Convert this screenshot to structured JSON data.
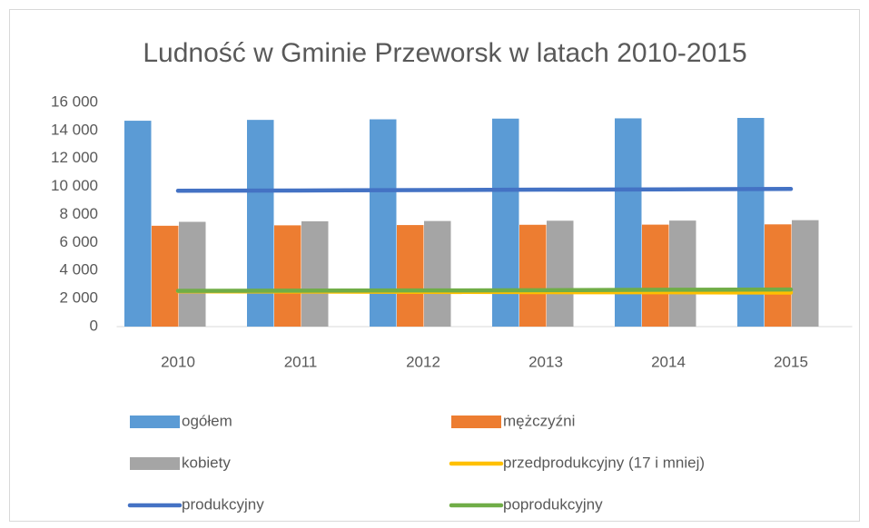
{
  "chart_data": {
    "type": "bar",
    "title": "Ludność w Gminie Przeworsk w latach 2010-2015",
    "categories": [
      "2010",
      "2011",
      "2012",
      "2013",
      "2014",
      "2015"
    ],
    "series": [
      {
        "name": "ogółem",
        "type": "bar",
        "color": "#5b9bd5",
        "values": [
          14700,
          14760,
          14800,
          14850,
          14870,
          14900
        ]
      },
      {
        "name": "mężczyźni",
        "type": "bar",
        "color": "#ed7d31",
        "values": [
          7200,
          7230,
          7250,
          7270,
          7280,
          7300
        ]
      },
      {
        "name": "kobiety",
        "type": "bar",
        "color": "#a5a5a5",
        "values": [
          7480,
          7520,
          7540,
          7560,
          7570,
          7600
        ]
      },
      {
        "name": "przedprodukcyjny (17 i mniej)",
        "type": "line",
        "color": "#ffc000",
        "values": [
          2520,
          2500,
          2480,
          2460,
          2450,
          2430
        ]
      },
      {
        "name": "produkcyjny",
        "type": "line",
        "color": "#4472c4",
        "values": [
          9700,
          9720,
          9750,
          9780,
          9800,
          9830
        ]
      },
      {
        "name": "poprodukcyjny",
        "type": "line",
        "color": "#70ad47",
        "values": [
          2550,
          2570,
          2580,
          2600,
          2630,
          2650
        ]
      }
    ],
    "ylim": [
      0,
      16000
    ],
    "yticks": [
      0,
      {
        "value": 2000,
        "label": "2 000"
      },
      {
        "value": 4000,
        "label": "4 000"
      },
      {
        "value": 6000,
        "label": "6 000"
      },
      {
        "value": 8000,
        "label": "8 000"
      },
      {
        "value": 10000,
        "label": "10 000"
      },
      {
        "value": 12000,
        "label": "12 000"
      },
      {
        "value": 14000,
        "label": "14 000"
      },
      {
        "value": 16000,
        "label": "16 000"
      }
    ],
    "grid": false,
    "legend": "bottom"
  }
}
